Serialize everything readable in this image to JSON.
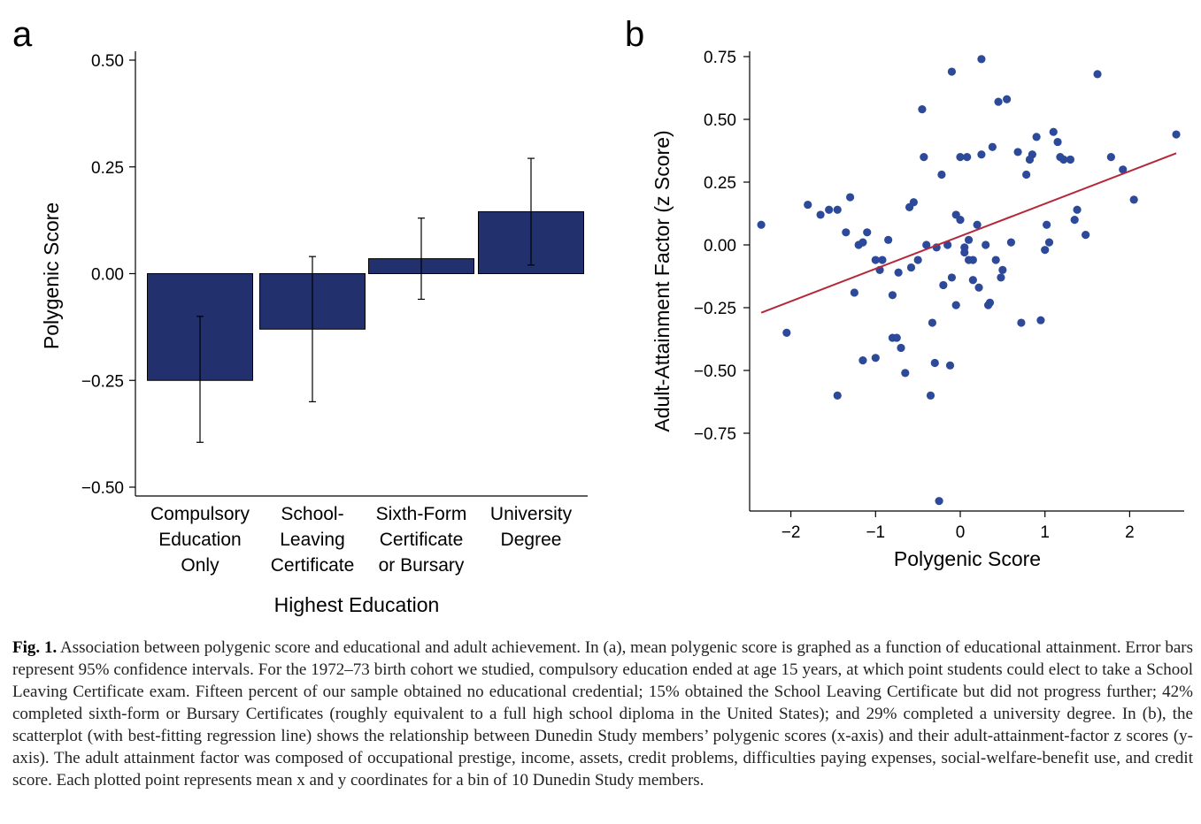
{
  "chart_data": [
    {
      "panel": "a",
      "type": "bar",
      "title": "",
      "xlabel": "Highest Education",
      "ylabel": "Polygenic Score",
      "ylim": [
        -0.5,
        0.5
      ],
      "yticks": [
        -0.5,
        -0.25,
        0,
        0.25,
        0.5
      ],
      "ytick_labels": [
        "−0.50",
        "−0.25",
        "0.00",
        "0.25",
        "0.50"
      ],
      "categories": [
        [
          "Compulsory",
          "Education",
          "Only"
        ],
        [
          "School-",
          "Leaving",
          "Certificate"
        ],
        [
          "Sixth-Form",
          "Certificate",
          "or Bursary"
        ],
        [
          "University",
          "Degree"
        ]
      ],
      "values": [
        -0.25,
        -0.13,
        0.035,
        0.145
      ],
      "error_low": [
        -0.395,
        -0.3,
        -0.06,
        0.02
      ],
      "error_high": [
        -0.1,
        0.04,
        0.13,
        0.27
      ],
      "bar_color": "#22306e"
    },
    {
      "panel": "b",
      "type": "scatter",
      "title": "",
      "xlabel": "Polygenic Score",
      "ylabel": "Adult-Attainment Factor (z Score)",
      "xlim": [
        -2.4,
        2.6
      ],
      "ylim": [
        -1.05,
        0.78
      ],
      "xticks": [
        -2,
        -1,
        0,
        1,
        2
      ],
      "xtick_labels": [
        "−2",
        "−1",
        "0",
        "1",
        "2"
      ],
      "yticks": [
        -0.75,
        -0.5,
        -0.25,
        0,
        0.25,
        0.5,
        0.75
      ],
      "ytick_labels": [
        "−0.75",
        "−0.50",
        "−0.25",
        "0.00",
        "0.25",
        "0.50",
        "0.75"
      ],
      "point_color": "#2d4a9a",
      "line_color": "#b5273a",
      "regression": {
        "x": [
          -2.35,
          2.55
        ],
        "y": [
          -0.27,
          0.365
        ]
      },
      "points": [
        [
          -2.35,
          0.08
        ],
        [
          -2.05,
          -0.35
        ],
        [
          -1.8,
          0.16
        ],
        [
          -1.65,
          0.12
        ],
        [
          -1.55,
          0.14
        ],
        [
          -1.45,
          0.14
        ],
        [
          -1.45,
          -0.6
        ],
        [
          -1.35,
          0.05
        ],
        [
          -1.3,
          0.19
        ],
        [
          -1.25,
          -0.19
        ],
        [
          -1.2,
          0.0
        ],
        [
          -1.15,
          0.01
        ],
        [
          -1.1,
          0.05
        ],
        [
          -1.15,
          -0.46
        ],
        [
          -1.0,
          -0.45
        ],
        [
          -1.0,
          -0.06
        ],
        [
          -0.95,
          -0.1
        ],
        [
          -0.92,
          -0.06
        ],
        [
          -0.85,
          0.02
        ],
        [
          -0.8,
          -0.2
        ],
        [
          -0.8,
          -0.37
        ],
        [
          -0.75,
          -0.37
        ],
        [
          -0.73,
          -0.11
        ],
        [
          -0.7,
          -0.41
        ],
        [
          -0.65,
          -0.51
        ],
        [
          -0.6,
          0.15
        ],
        [
          -0.58,
          -0.09
        ],
        [
          -0.55,
          0.17
        ],
        [
          -0.5,
          -0.06
        ],
        [
          -0.45,
          0.54
        ],
        [
          -0.43,
          0.35
        ],
        [
          -0.4,
          0.0
        ],
        [
          -0.35,
          -0.6
        ],
        [
          -0.33,
          -0.31
        ],
        [
          -0.3,
          -0.47
        ],
        [
          -0.28,
          -0.01
        ],
        [
          -0.25,
          -1.02
        ],
        [
          -0.22,
          0.28
        ],
        [
          -0.2,
          -0.16
        ],
        [
          -0.15,
          0.0
        ],
        [
          -0.12,
          -0.48
        ],
        [
          -0.1,
          0.69
        ],
        [
          -0.1,
          -0.13
        ],
        [
          -0.05,
          0.12
        ],
        [
          -0.05,
          -0.24
        ],
        [
          0.0,
          0.35
        ],
        [
          0.0,
          0.1
        ],
        [
          0.05,
          -0.01
        ],
        [
          0.05,
          -0.03
        ],
        [
          0.08,
          0.35
        ],
        [
          0.1,
          -0.06
        ],
        [
          0.1,
          0.02
        ],
        [
          0.15,
          -0.06
        ],
        [
          0.15,
          -0.14
        ],
        [
          0.2,
          0.08
        ],
        [
          0.22,
          -0.17
        ],
        [
          0.25,
          0.74
        ],
        [
          0.25,
          0.36
        ],
        [
          0.3,
          0.0
        ],
        [
          0.33,
          -0.24
        ],
        [
          0.35,
          -0.23
        ],
        [
          0.38,
          0.39
        ],
        [
          0.42,
          -0.06
        ],
        [
          0.45,
          0.57
        ],
        [
          0.48,
          -0.13
        ],
        [
          0.5,
          -0.1
        ],
        [
          0.55,
          0.58
        ],
        [
          0.6,
          0.01
        ],
        [
          0.68,
          0.37
        ],
        [
          0.72,
          -0.31
        ],
        [
          0.78,
          0.28
        ],
        [
          0.82,
          0.34
        ],
        [
          0.85,
          0.36
        ],
        [
          0.9,
          0.43
        ],
        [
          0.95,
          -0.3
        ],
        [
          1.0,
          -0.02
        ],
        [
          1.02,
          0.08
        ],
        [
          1.05,
          0.01
        ],
        [
          1.1,
          0.45
        ],
        [
          1.15,
          0.41
        ],
        [
          1.18,
          0.35
        ],
        [
          1.22,
          0.34
        ],
        [
          1.3,
          0.34
        ],
        [
          1.35,
          0.1
        ],
        [
          1.38,
          0.14
        ],
        [
          1.48,
          0.04
        ],
        [
          1.62,
          0.68
        ],
        [
          1.78,
          0.35
        ],
        [
          1.92,
          0.3
        ],
        [
          2.05,
          0.18
        ],
        [
          2.55,
          0.44
        ]
      ]
    }
  ],
  "figure": {
    "panel_a_letter": "a",
    "panel_b_letter": "b"
  },
  "caption": {
    "label": "Fig. 1.",
    "text": "Association between polygenic score and educational and adult achievement. In (a), mean polygenic score is graphed as a function of educational attainment. Error bars represent 95% confidence intervals. For the 1972–73 birth cohort we studied, compulsory education ended at age 15 years, at which point students could elect to take a School Leaving Certificate exam. Fifteen percent of our sample obtained no educational credential; 15% obtained the School Leaving Certificate but did not progress further; 42% completed sixth-form or Bursary Certificates (roughly equivalent to a full high school diploma in the United States); and 29% completed a university degree. In (b), the scatterplot (with best-fitting regression line) shows the relationship between Dunedin Study members’ polygenic scores (x-axis) and their adult-attainment-factor z scores (y-axis). The adult attainment factor was composed of occupational prestige, income, assets, credit problems, difficulties paying expenses, social-welfare-benefit use, and credit score. Each plotted point represents mean x and y coordinates for a bin of 10 Dunedin Study members."
  }
}
